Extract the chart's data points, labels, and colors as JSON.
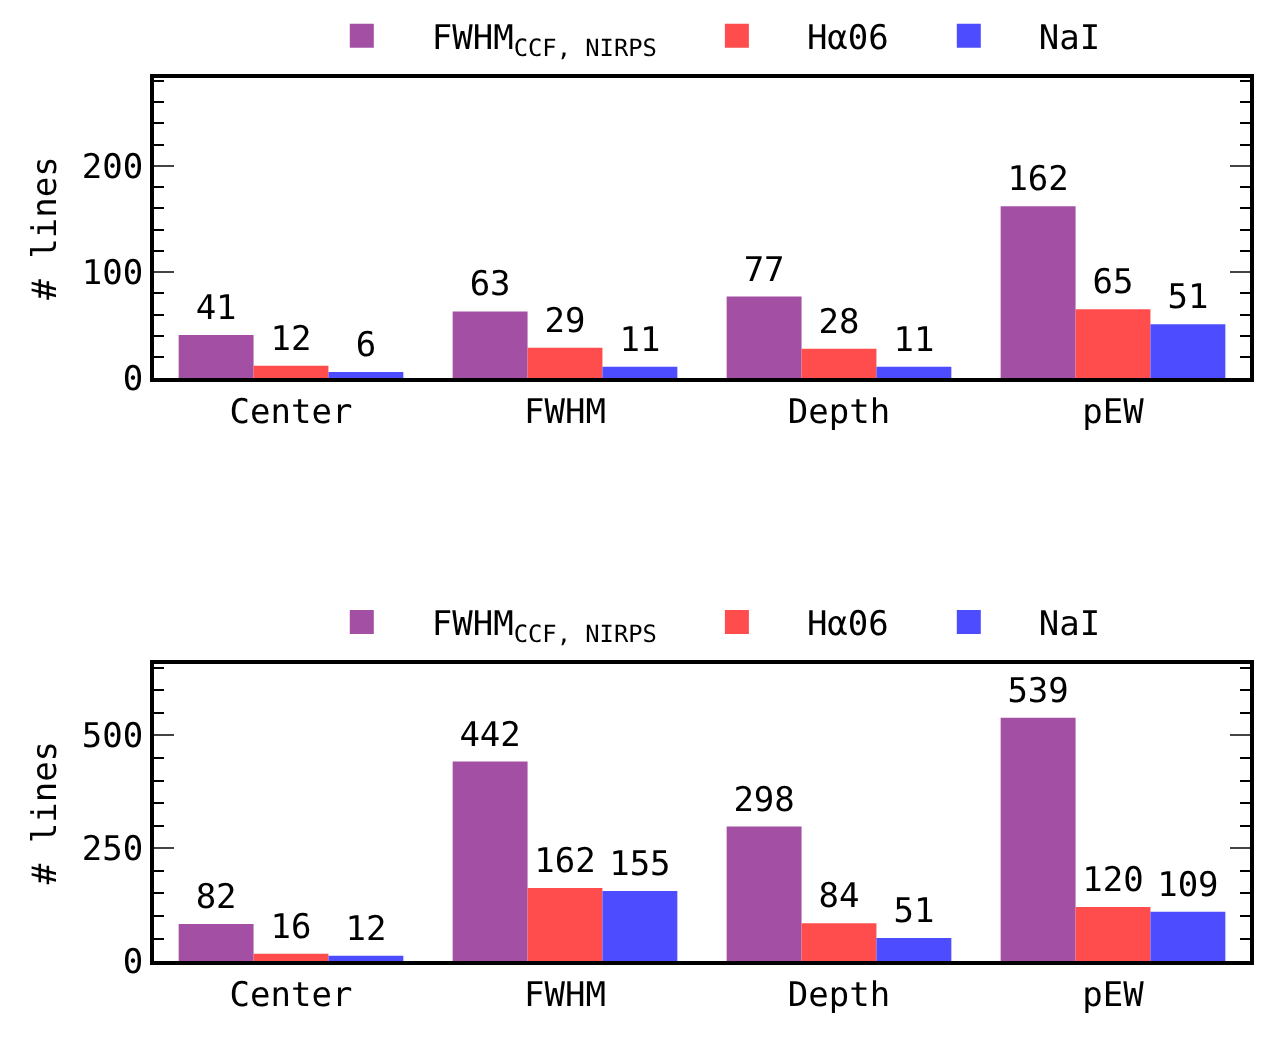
{
  "chart_data": [
    {
      "type": "bar",
      "categories": [
        "Center",
        "FWHM",
        "Depth",
        "pEW"
      ],
      "ylabel": "# lines",
      "ylim": [
        0,
        283
      ],
      "yticks": [
        0,
        100,
        200
      ],
      "legend": "top",
      "data_labels": true,
      "series": [
        {
          "name": "FWHM$_{CCF, NIRPS}$",
          "color": "#a34fa3",
          "values": [
            41,
            63,
            77,
            162
          ]
        },
        {
          "name": "Hα06",
          "color": "#ff4d4d",
          "values": [
            12,
            29,
            28,
            65
          ]
        },
        {
          "name": "NaI",
          "color": "#4d4dff",
          "values": [
            6,
            11,
            11,
            51
          ]
        }
      ]
    },
    {
      "type": "bar",
      "categories": [
        "Center",
        "FWHM",
        "Depth",
        "pEW"
      ],
      "ylabel": "# lines",
      "ylim": [
        0,
        658
      ],
      "yticks": [
        0,
        250,
        500
      ],
      "legend": "top",
      "data_labels": true,
      "series": [
        {
          "name": "FWHM$_{CCF, NIRPS}$",
          "color": "#a34fa3",
          "values": [
            82,
            442,
            298,
            539
          ]
        },
        {
          "name": "Hα06",
          "color": "#ff4d4d",
          "values": [
            16,
            162,
            84,
            120
          ]
        },
        {
          "name": "NaI",
          "color": "#4d4dff",
          "values": [
            12,
            155,
            51,
            109
          ]
        }
      ]
    }
  ]
}
